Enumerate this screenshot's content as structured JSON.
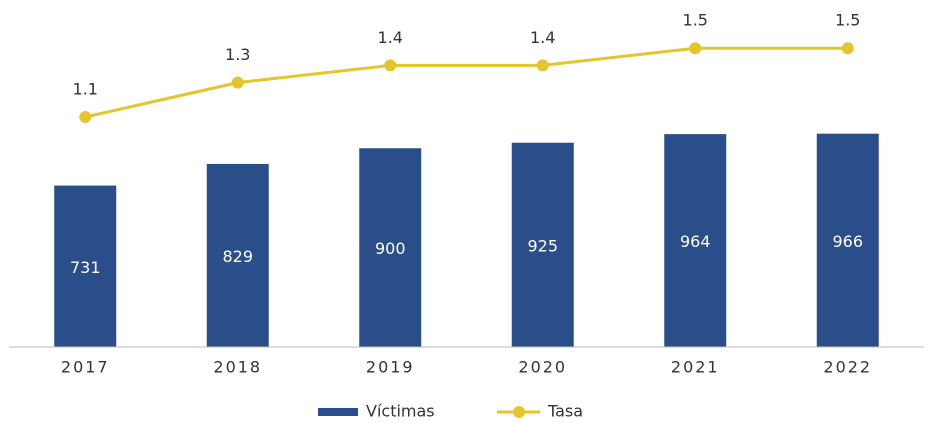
{
  "chart_data": {
    "type": "bar_line",
    "categories": [
      "2017",
      "2018",
      "2019",
      "2020",
      "2021",
      "2022"
    ],
    "series": [
      {
        "name": "Víctimas",
        "type": "bar",
        "color": "#2a4e8a",
        "values": [
          731,
          829,
          900,
          925,
          964,
          966
        ]
      },
      {
        "name": "Tasa",
        "type": "line",
        "axis": "y2",
        "color": "#e2c62b",
        "values": [
          1.1,
          1.3,
          1.4,
          1.4,
          1.5,
          1.5
        ]
      }
    ],
    "ylim": [
      0,
      1200
    ],
    "y2lim": [
      0.6,
      1.6
    ],
    "grid": false,
    "legend": "bottom"
  }
}
